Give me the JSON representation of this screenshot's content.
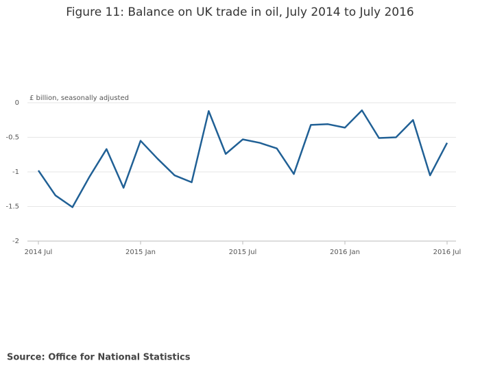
{
  "chart_data": {
    "type": "line",
    "title": "Figure 11: Balance on UK trade in oil, July 2014 to July 2016",
    "y_label": "£ billion, seasonally adjusted",
    "source": "Source: Office for National Statistics",
    "categories": [
      "2014 Jul",
      null,
      null,
      null,
      null,
      null,
      "2015 Jan",
      null,
      null,
      null,
      null,
      null,
      "2015 Jul",
      null,
      null,
      null,
      null,
      null,
      "2016 Jan",
      null,
      null,
      null,
      null,
      null,
      "2016 Jul"
    ],
    "series": [
      {
        "name": "Balance on UK trade in oil",
        "color": "#206095",
        "values": [
          -0.98,
          -1.34,
          -1.51,
          -1.07,
          -0.67,
          -1.23,
          -0.55,
          -0.81,
          -1.05,
          -1.15,
          -0.12,
          -0.74,
          -0.53,
          -0.58,
          -0.66,
          -1.03,
          -0.32,
          -0.31,
          -0.36,
          -0.11,
          -0.51,
          -0.5,
          -0.25,
          -1.05,
          -0.58
        ]
      }
    ],
    "ylim": [
      -2,
      0
    ],
    "yticks": [
      0,
      -0.5,
      -1,
      -1.5,
      -2
    ],
    "grid": true
  }
}
